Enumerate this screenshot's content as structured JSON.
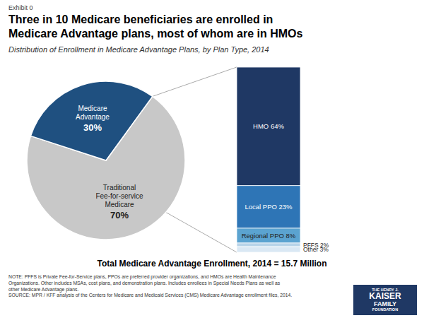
{
  "chart_data": [
    {
      "type": "pie",
      "title": "Three in 10 Medicare beneficiaries are enrolled in\nMedicare Advantage plans, most of whom are in HMOs",
      "subtitle": "Distribution of Enrollment in Medicare Advantage Plans, by Plan Type, 2014",
      "annotations": [
        "Exhibit 0"
      ],
      "categories": [
        "Traditional\nFee-for-service\nMedicare",
        "Medicare\nAdvantage"
      ],
      "values": [
        70,
        30
      ],
      "value_labels": [
        "70%",
        "30%"
      ],
      "colors": [
        "#c8c8c8",
        "#1f5080"
      ],
      "data_labels": true
    },
    {
      "type": "bar",
      "stacked": true,
      "categories": [
        null
      ],
      "series": [
        {
          "name": "HMO 64%",
          "color": "#1f3864",
          "values": [
            64
          ]
        },
        {
          "name": "Local PPO 23%",
          "color": "#2e75b6",
          "values": [
            23
          ]
        },
        {
          "name": "Regional PPO 8%",
          "color": "#5ba3d0",
          "values": [
            8
          ]
        },
        {
          "name": "PFFS 2%",
          "color": "#b8d4e8",
          "values": [
            2
          ]
        },
        {
          "name": "Other 3%",
          "color": "#dae8f4",
          "values": [
            3
          ]
        }
      ],
      "ylim": [
        0,
        100
      ],
      "tick_labels": false,
      "annotations": [
        "Total Medicare Advantage Enrollment, 2014 = 15.7 Million",
        "NOTE: PFFS is Private Fee-for-Service plans, PPOs are preferred provider organizations, and HMOs are Health Maintenance\nOrganizations. Other includes MSAs, cost plans, and demonstration plans.  Includes enrollees in Special Needs Plans as well as\nother Medicare Advantage plans.\nSOURCE:  MPR / KFF analysis of the Centers for Medicare and Medicaid Services (CMS) Medicare Advantage enrollment files, 2014.",
        "THE HENRY J.",
        "KAISER",
        "FAMILY",
        "FOUNDATION"
      ]
    }
  ]
}
